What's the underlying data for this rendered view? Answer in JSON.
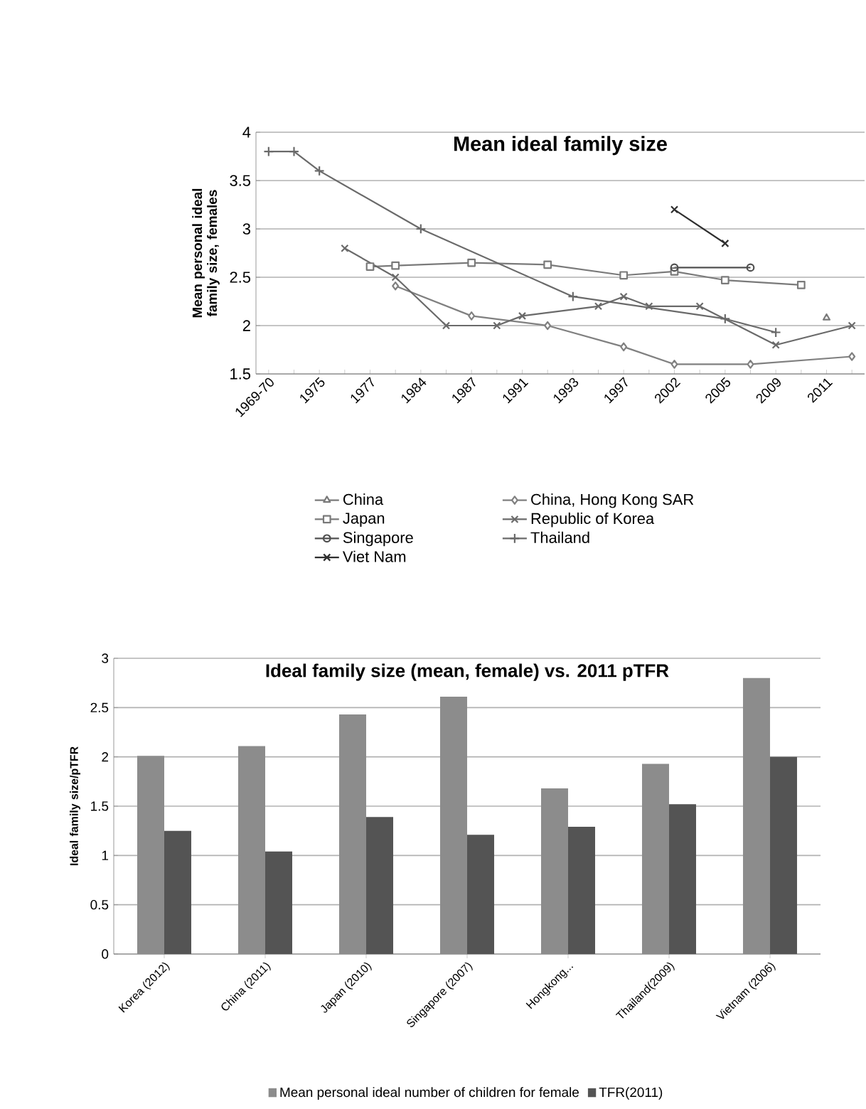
{
  "chart_data": [
    {
      "type": "line",
      "title": "Mean ideal family size",
      "ylabel": "Mean personal ideal family size, females",
      "categories": [
        "1969-70",
        null,
        "1975",
        null,
        "1977",
        null,
        "1984",
        null,
        "1987",
        null,
        "1991",
        null,
        "1993",
        null,
        "1997",
        null,
        "2002",
        null,
        "2005",
        null,
        "2009",
        null,
        "2011",
        null
      ],
      "ylim": [
        1.5,
        4
      ],
      "yticks": [
        1.5,
        2,
        2.5,
        3,
        3.5,
        4
      ],
      "grid": "y",
      "legend": "bottom",
      "series": [
        {
          "name": "China",
          "color": "#7a7a7a",
          "marker": "triangle",
          "values": [
            null,
            null,
            null,
            null,
            null,
            null,
            null,
            null,
            null,
            null,
            null,
            null,
            null,
            null,
            null,
            null,
            null,
            null,
            null,
            null,
            null,
            null,
            2.08,
            null
          ]
        },
        {
          "name": "China, Hong Kong SAR",
          "color": "#808080",
          "marker": "diamond",
          "values": [
            null,
            null,
            null,
            null,
            null,
            2.41,
            null,
            null,
            2.1,
            null,
            null,
            2.0,
            null,
            null,
            1.78,
            null,
            1.6,
            null,
            null,
            1.6,
            null,
            null,
            null,
            1.68
          ]
        },
        {
          "name": "Japan",
          "color": "#7a7a7a",
          "marker": "square",
          "values": [
            null,
            null,
            null,
            null,
            2.61,
            2.62,
            null,
            null,
            2.65,
            null,
            null,
            2.63,
            null,
            null,
            2.52,
            null,
            2.56,
            null,
            2.47,
            null,
            null,
            2.42,
            null,
            null
          ]
        },
        {
          "name": "Republic of Korea",
          "color": "#6a6a6a",
          "marker": "cross",
          "values": [
            null,
            null,
            null,
            2.8,
            null,
            2.5,
            null,
            2.0,
            null,
            2.0,
            2.1,
            null,
            null,
            2.2,
            2.3,
            2.2,
            null,
            2.2,
            null,
            null,
            1.8,
            null,
            null,
            2.0
          ]
        },
        {
          "name": "Singapore",
          "color": "#505050",
          "marker": "circle",
          "values": [
            null,
            null,
            null,
            null,
            null,
            null,
            null,
            null,
            null,
            null,
            null,
            null,
            null,
            null,
            null,
            null,
            2.6,
            null,
            null,
            2.6,
            null,
            null,
            null,
            null
          ]
        },
        {
          "name": "Thailand",
          "color": "#6a6a6a",
          "marker": "plus",
          "values": [
            3.8,
            3.8,
            3.6,
            null,
            null,
            null,
            3.0,
            null,
            null,
            null,
            null,
            null,
            2.3,
            null,
            null,
            null,
            null,
            null,
            2.07,
            null,
            1.93,
            null,
            null,
            null
          ]
        },
        {
          "name": "Viet Nam",
          "color": "#2e2e2e",
          "marker": "cross",
          "values": [
            null,
            null,
            null,
            null,
            null,
            null,
            null,
            null,
            null,
            null,
            null,
            null,
            null,
            null,
            null,
            null,
            3.2,
            null,
            2.85,
            null,
            null,
            null,
            null,
            null
          ]
        }
      ]
    },
    {
      "type": "bar",
      "title": "Ideal family size (mean, female) vs. 2011 pTFR",
      "ylabel": "Ideal family size/pTFR",
      "categories": [
        "Korea (2012)",
        "China (2011)",
        "Japan (2010)",
        "Singapore (2007)",
        "Hongkong...",
        "Thailand(2009)",
        "Vietnam (2006)"
      ],
      "ylim": [
        0,
        3
      ],
      "yticks": [
        0,
        0.5,
        1,
        1.5,
        2,
        2.5,
        3
      ],
      "grid": "y",
      "legend": "bottom",
      "series": [
        {
          "name": "Mean personal ideal number of children for female",
          "color": "#8c8c8c",
          "values": [
            2.01,
            2.11,
            2.43,
            2.61,
            1.68,
            1.93,
            2.8
          ]
        },
        {
          "name": "TFR(2011)",
          "color": "#545454",
          "values": [
            1.25,
            1.04,
            1.39,
            1.21,
            1.29,
            1.52,
            2.0
          ]
        }
      ]
    }
  ]
}
